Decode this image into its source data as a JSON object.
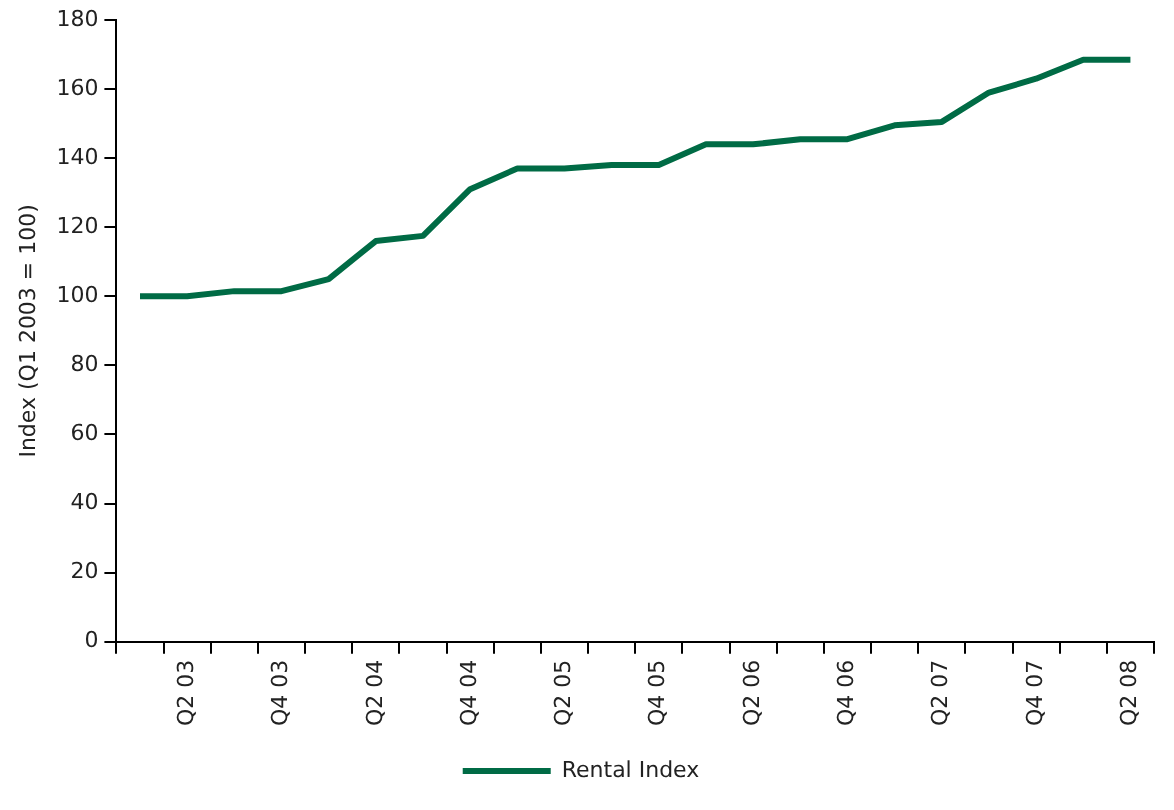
{
  "chart_data": {
    "type": "line",
    "ylabel": "Index (Q1 2003 = 100)",
    "categories": [
      null,
      "Q2 03",
      null,
      "Q4 03",
      null,
      "Q2 04",
      null,
      "Q4 04",
      null,
      "Q2 05",
      null,
      "Q4 05",
      null,
      "Q2 06",
      null,
      "Q4 06",
      null,
      "Q2 07",
      null,
      "Q4 07",
      null,
      "Q2 08"
    ],
    "series": [
      {
        "name": "Rental Index",
        "color": "#006b45",
        "values": [
          100,
          100,
          101.5,
          101.5,
          105,
          116,
          117.5,
          131,
          137,
          137,
          138,
          138,
          144,
          144,
          145.5,
          145.5,
          149.5,
          150.5,
          159,
          163,
          168.5,
          168.5
        ]
      }
    ],
    "ylim": [
      0,
      180
    ],
    "yticks": [
      0,
      20,
      40,
      60,
      80,
      100,
      120,
      140,
      160,
      180
    ],
    "grid": false,
    "legend": "bottom",
    "marker": "none",
    "line_style": "solid"
  }
}
